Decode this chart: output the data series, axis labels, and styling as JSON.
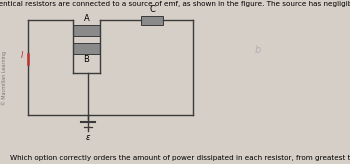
{
  "title": "Three identical resistors are connected to a source of emf, as shown in the figure. The source has negligible resistance.",
  "question": "Which option correctly orders the amount of power dissipated in each resistor, from greatest to smallest?",
  "bg_color": "#d6cfc7",
  "resistor_color": "#8a8a8a",
  "wire_color": "#3a3a3a",
  "label_A": "A",
  "label_B": "B",
  "label_C": "C",
  "label_I": "I",
  "label_emf": "ε",
  "title_fontsize": 5.2,
  "question_fontsize": 5.2,
  "sidebar_text": "© Macmillan Learning",
  "watermark": "b",
  "res_color_dark": "#8c8c8c",
  "I_color": "#bb3333"
}
